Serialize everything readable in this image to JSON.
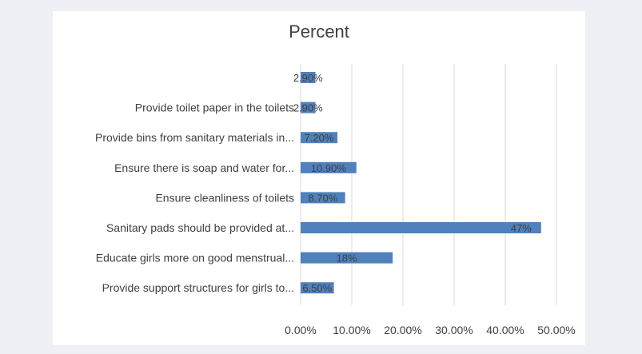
{
  "chart_data": {
    "type": "bar",
    "orientation": "horizontal",
    "title": "Percent",
    "categories": [
      "",
      "Provide toilet paper in the toilets",
      "Provide bins from sanitary materials in...",
      "Ensure there is soap and water for...",
      "Ensure cleanliness of toilets",
      "Sanitary pads should be provided at...",
      "Educate girls more on good menstrual...",
      "Provide support structures for girls to..."
    ],
    "values": [
      2.9,
      2.9,
      7.2,
      10.9,
      8.7,
      47,
      18,
      6.5
    ],
    "data_labels": [
      "2.90%",
      "2.90%",
      "7.20%",
      "10.90%",
      "8.70%",
      "47%",
      "18%",
      "6.50%"
    ],
    "xlim": [
      0,
      50
    ],
    "x_ticks": [
      "0.00%",
      "10.00%",
      "20.00%",
      "30.00%",
      "40.00%",
      "50.00%"
    ],
    "grid": true,
    "legend": "none",
    "colors": {
      "bar": "#4f81bd",
      "grid": "#d9d9d9",
      "text": "#404040",
      "background": "#ffffff",
      "page": "#eef0f5"
    }
  }
}
